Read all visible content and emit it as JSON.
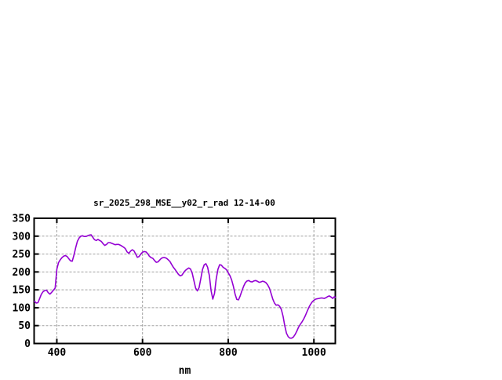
{
  "window": {
    "background": "#FFFFFF"
  },
  "chart_data": {
    "type": "line",
    "title": "sr_2025_298_MSE__y02_r_rad 12-14-00",
    "xlabel": "nm",
    "ylabel": "",
    "xlim": [
      347,
      1050
    ],
    "ylim": [
      0,
      350
    ],
    "xticks": [
      400,
      600,
      800,
      1000
    ],
    "yticks": [
      0,
      50,
      100,
      150,
      200,
      250,
      300,
      350
    ],
    "grid": true,
    "legend": "none",
    "colors": {
      "line": "#9400D3",
      "grid": "#A0A0A0",
      "axis": "#000000",
      "text": "#000000",
      "background": "#FFFFFF"
    },
    "series": [
      {
        "x": [
          348,
          352,
          356,
          360,
          364,
          368,
          372,
          376,
          380,
          384,
          388,
          392,
          396,
          400,
          404,
          408,
          412,
          416,
          420,
          424,
          428,
          432,
          436,
          440,
          444,
          448,
          452,
          456,
          460,
          464,
          468,
          472,
          476,
          480,
          484,
          488,
          492,
          496,
          500,
          504,
          508,
          512,
          516,
          520,
          524,
          528,
          532,
          536,
          540,
          544,
          548,
          552,
          556,
          560,
          564,
          568,
          572,
          576,
          580,
          584,
          588,
          592,
          596,
          600,
          604,
          608,
          612,
          616,
          620,
          624,
          628,
          632,
          636,
          640,
          644,
          648,
          652,
          656,
          660,
          664,
          668,
          672,
          676,
          680,
          684,
          688,
          692,
          696,
          700,
          704,
          708,
          712,
          716,
          720,
          724,
          728,
          732,
          736,
          740,
          744,
          748,
          752,
          756,
          760,
          764,
          768,
          772,
          776,
          780,
          784,
          788,
          792,
          796,
          800,
          804,
          808,
          812,
          816,
          820,
          824,
          828,
          832,
          836,
          840,
          844,
          848,
          852,
          856,
          860,
          864,
          868,
          872,
          876,
          880,
          884,
          888,
          892,
          896,
          900,
          904,
          908,
          912,
          916,
          920,
          924,
          928,
          932,
          936,
          940,
          944,
          948,
          952,
          956,
          960,
          964,
          968,
          972,
          976,
          980,
          984,
          988,
          992,
          996,
          1000,
          1004,
          1008,
          1012,
          1016,
          1020,
          1024,
          1028,
          1032,
          1036,
          1040,
          1044,
          1048,
          1050
        ],
        "y": [
          118,
          113,
          114,
          126,
          138,
          145,
          148,
          149,
          142,
          138,
          143,
          149,
          155,
          208,
          226,
          234,
          240,
          244,
          246,
          243,
          237,
          231,
          230,
          247,
          268,
          286,
          295,
          300,
          301,
          299,
          299,
          301,
          303,
          304,
          297,
          290,
          288,
          291,
          288,
          285,
          279,
          274,
          277,
          282,
          282,
          280,
          278,
          276,
          277,
          277,
          275,
          272,
          269,
          265,
          256,
          252,
          258,
          262,
          259,
          250,
          241,
          243,
          250,
          255,
          257,
          256,
          251,
          244,
          240,
          238,
          232,
          227,
          228,
          233,
          238,
          240,
          240,
          238,
          234,
          229,
          221,
          213,
          207,
          200,
          193,
          189,
          191,
          198,
          204,
          208,
          211,
          208,
          196,
          176,
          155,
          147,
          156,
          181,
          207,
          220,
          223,
          213,
          190,
          148,
          124,
          140,
          180,
          207,
          220,
          219,
          213,
          210,
          206,
          198,
          190,
          178,
          160,
          138,
          123,
          122,
          133,
          147,
          160,
          170,
          175,
          176,
          173,
          172,
          175,
          176,
          174,
          171,
          172,
          174,
          173,
          170,
          164,
          155,
          140,
          124,
          113,
          107,
          108,
          104,
          95,
          76,
          50,
          29,
          19,
          15,
          15,
          18,
          25,
          34,
          45,
          53,
          60,
          68,
          78,
          89,
          100,
          109,
          116,
          121,
          124,
          125,
          126,
          127,
          127,
          126,
          128,
          131,
          133,
          130,
          126,
          131,
          129
        ]
      }
    ]
  }
}
